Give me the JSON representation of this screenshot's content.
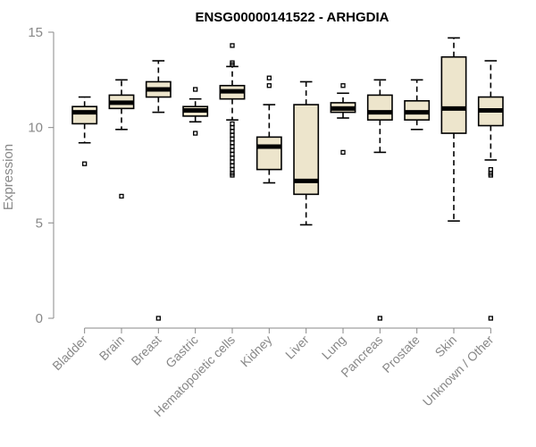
{
  "chart_data": {
    "type": "boxplot",
    "title": "ENSG00000141522 - ARHGDIA",
    "xlabel": "",
    "ylabel": "Expression",
    "ylim": [
      0,
      15
    ],
    "yticks": [
      0,
      5,
      10,
      15
    ],
    "box_fill": "#ede5cc",
    "categories": [
      "Bladder",
      "Brain",
      "Breast",
      "Gastric",
      "Hematopoietic cells",
      "Kidney",
      "Liver",
      "Lung",
      "Pancreas",
      "Prostate",
      "Skin",
      "Unknown / Other"
    ],
    "boxes": [
      {
        "category": "Bladder",
        "whisker_low": 9.2,
        "q1": 10.2,
        "median": 10.8,
        "q3": 11.1,
        "whisker_high": 11.6,
        "outliers": [
          8.1
        ]
      },
      {
        "category": "Brain",
        "whisker_low": 9.9,
        "q1": 11.0,
        "median": 11.3,
        "q3": 11.7,
        "whisker_high": 12.5,
        "outliers": [
          6.4
        ]
      },
      {
        "category": "Breast",
        "whisker_low": 10.8,
        "q1": 11.6,
        "median": 12.0,
        "q3": 12.4,
        "whisker_high": 13.5,
        "outliers": [
          0.0
        ]
      },
      {
        "category": "Gastric",
        "whisker_low": 10.3,
        "q1": 10.6,
        "median": 10.9,
        "q3": 11.1,
        "whisker_high": 11.5,
        "outliers": [
          9.7,
          12.0
        ]
      },
      {
        "category": "Hematopoietic cells",
        "whisker_low": 10.4,
        "q1": 11.5,
        "median": 11.9,
        "q3": 12.2,
        "whisker_high": 13.2,
        "outliers": [
          14.3,
          13.4,
          13.3,
          10.2,
          10.0,
          9.8,
          9.6,
          9.4,
          9.2,
          9.0,
          8.8,
          8.6,
          8.4,
          8.2,
          8.0,
          7.8,
          7.6,
          7.5
        ]
      },
      {
        "category": "Kidney",
        "whisker_low": 7.1,
        "q1": 7.8,
        "median": 9.0,
        "q3": 9.5,
        "whisker_high": 11.2,
        "outliers": [
          12.6,
          12.2
        ]
      },
      {
        "category": "Liver",
        "whisker_low": 4.9,
        "q1": 6.5,
        "median": 7.2,
        "q3": 11.2,
        "whisker_high": 12.4,
        "outliers": []
      },
      {
        "category": "Lung",
        "whisker_low": 10.5,
        "q1": 10.8,
        "median": 11.0,
        "q3": 11.3,
        "whisker_high": 11.8,
        "outliers": [
          12.2,
          8.7
        ]
      },
      {
        "category": "Pancreas",
        "whisker_low": 8.7,
        "q1": 10.4,
        "median": 10.8,
        "q3": 11.7,
        "whisker_high": 12.5,
        "outliers": [
          0.0
        ]
      },
      {
        "category": "Prostate",
        "whisker_low": 9.9,
        "q1": 10.4,
        "median": 10.8,
        "q3": 11.4,
        "whisker_high": 12.5,
        "outliers": []
      },
      {
        "category": "Skin",
        "whisker_low": 5.1,
        "q1": 9.7,
        "median": 11.0,
        "q3": 13.7,
        "whisker_high": 14.7,
        "outliers": []
      },
      {
        "category": "Unknown / Other",
        "whisker_low": 8.3,
        "q1": 10.1,
        "median": 10.9,
        "q3": 11.6,
        "whisker_high": 13.5,
        "outliers": [
          7.8,
          7.6,
          7.5,
          0.0
        ]
      }
    ]
  }
}
